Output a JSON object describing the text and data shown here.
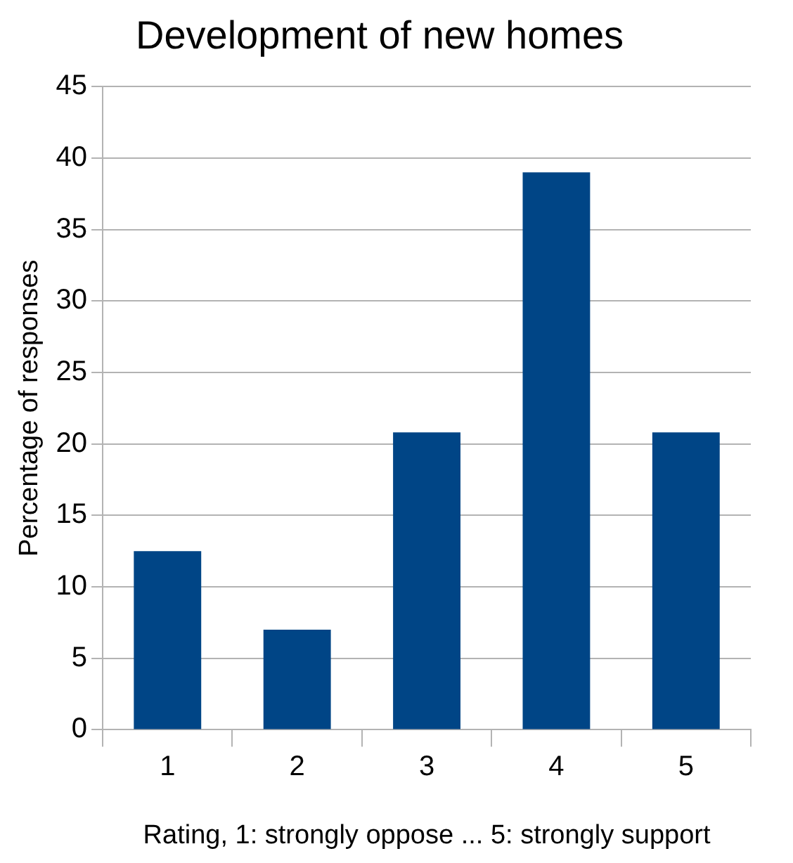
{
  "chart_data": {
    "type": "bar",
    "title": "Development of new homes",
    "xlabel": "Rating, 1: strongly oppose ... 5: strongly support",
    "ylabel": "Percentage of responses",
    "categories": [
      "1",
      "2",
      "3",
      "4",
      "5"
    ],
    "values": [
      12.5,
      7,
      20.8,
      39,
      20.8
    ],
    "color": "#004586",
    "ylim": [
      0,
      45
    ],
    "yticks": [
      0,
      5,
      10,
      15,
      20,
      25,
      30,
      35,
      40,
      45
    ],
    "grid": "y"
  }
}
